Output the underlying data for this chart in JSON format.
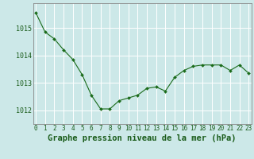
{
  "x": [
    0,
    1,
    2,
    3,
    4,
    5,
    6,
    7,
    8,
    9,
    10,
    11,
    12,
    13,
    14,
    15,
    16,
    17,
    18,
    19,
    20,
    21,
    22,
    23
  ],
  "y": [
    1015.55,
    1014.85,
    1014.6,
    1014.2,
    1013.85,
    1013.3,
    1012.55,
    1012.05,
    1012.05,
    1012.35,
    1012.45,
    1012.55,
    1012.8,
    1012.85,
    1012.7,
    1013.2,
    1013.45,
    1013.6,
    1013.65,
    1013.65,
    1013.65,
    1013.45,
    1013.65,
    1013.35
  ],
  "line_color": "#1a6b1a",
  "marker_color": "#1a6b1a",
  "bg_color": "#cce8e8",
  "grid_color": "#ffffff",
  "border_color": "#888888",
  "title": "Graphe pression niveau de la mer (hPa)",
  "ylabel_ticks": [
    1012,
    1013,
    1014,
    1015
  ],
  "xlabel_ticks": [
    0,
    1,
    2,
    3,
    4,
    5,
    6,
    7,
    8,
    9,
    10,
    11,
    12,
    13,
    14,
    15,
    16,
    17,
    18,
    19,
    20,
    21,
    22,
    23
  ],
  "ylim": [
    1011.5,
    1015.9
  ],
  "xlim": [
    -0.3,
    23.3
  ],
  "title_color": "#1a5c1a",
  "title_fontsize": 7.5,
  "tick_fontsize": 5.5,
  "ytick_fontsize": 6.0
}
